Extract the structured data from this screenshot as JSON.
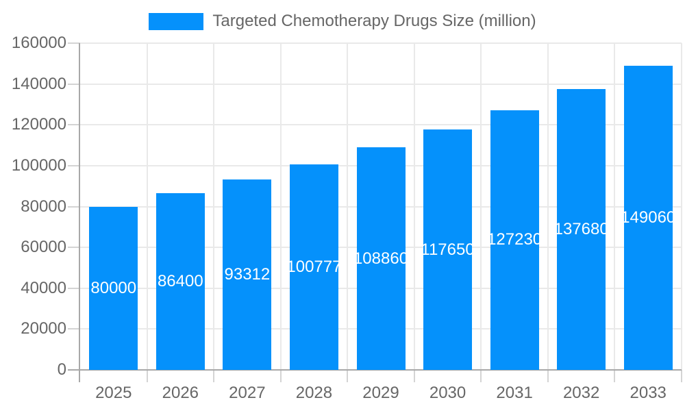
{
  "legend": {
    "label": "Targeted Chemotherapy Drugs Size (million)"
  },
  "chart_data": {
    "type": "bar",
    "title": "Targeted Chemotherapy Drugs Size (million)",
    "categories": [
      "2025",
      "2026",
      "2027",
      "2028",
      "2029",
      "2030",
      "2031",
      "2032",
      "2033"
    ],
    "series": [
      {
        "name": "Targeted Chemotherapy Drugs Size (million)",
        "values": [
          80000,
          86400,
          93312,
          100777,
          108860,
          117650,
          127230,
          137680,
          149060
        ]
      }
    ],
    "value_labels": [
      "80000",
      "86400",
      "93312",
      "100777",
      "108860",
      "117650",
      "127230",
      "137680",
      "149060"
    ],
    "xlabel": "",
    "ylabel": "",
    "ylim": [
      0,
      160000
    ],
    "y_tick_labels": [
      "0",
      "20000",
      "40000",
      "60000",
      "80000",
      "100000",
      "120000",
      "140000",
      "160000"
    ],
    "grid": true,
    "legend_position": "top",
    "colors": {
      "bar": "#0591fb",
      "grid": "#e9e9e9",
      "axis": "#a8a8a8",
      "tick": "#d4d4d4",
      "tick_text": "#666666",
      "value_text": "#ffffff"
    }
  }
}
